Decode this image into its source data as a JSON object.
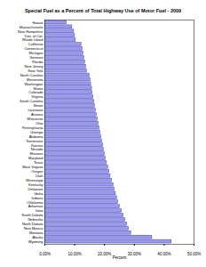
{
  "chart_data": {
    "type": "bar",
    "orientation": "horizontal",
    "title": "Special Fuel as a Percent of Total Highway Use of Motor Fuel - 2009",
    "x_label": "Percent",
    "categories": [
      "Hawaii",
      "Massachusetts",
      "New Hampshire",
      "Dist. of Col.",
      "Rhode Island",
      "California",
      "Connecticut",
      "Michigan",
      "Vermont",
      "Florida",
      "New Jersey",
      "New York",
      "North Carolina",
      "Minnesota",
      "Washington",
      "Maine",
      "Colorado",
      "Virginia",
      "South Carolina",
      "Illinois",
      "Louisiana",
      "Arizona",
      "Wisconsin",
      "Ohio",
      "Pennsylvania",
      "Georgia",
      "Alabama",
      "Tennessee",
      "Kansas",
      "Nevada",
      "Missouri",
      "Maryland",
      "Texas",
      "West Virginia",
      "Oregon",
      "Utah",
      "Mississippi",
      "Kentucky",
      "Delaware",
      "Idaho",
      "Indiana",
      "Oklahoma",
      "Arkansas",
      "Iowa",
      "South Dakota",
      "Nebraska",
      "North Dakota",
      "New Mexico",
      "Montana",
      "Alaska",
      "Wyoming"
    ],
    "values": [
      7.3,
      9.2,
      9.8,
      10.1,
      10.4,
      12.3,
      12.7,
      12.9,
      13.2,
      13.5,
      13.8,
      14.1,
      15.0,
      15.3,
      15.5,
      15.8,
      16.0,
      16.3,
      16.6,
      16.8,
      17.1,
      17.4,
      17.7,
      18.0,
      18.3,
      18.6,
      18.9,
      19.2,
      19.5,
      19.8,
      20.1,
      20.4,
      20.8,
      21.2,
      21.6,
      22.0,
      22.5,
      23.0,
      23.4,
      23.8,
      24.2,
      24.6,
      25.2,
      25.8,
      26.4,
      27.0,
      27.6,
      28.2,
      29.0,
      36.0,
      42.5
    ],
    "color": "#9999ee",
    "xlim": [
      0,
      50
    ],
    "xticks": [
      {
        "value": 0,
        "label": "0.00%"
      },
      {
        "value": 10,
        "label": "10.00%"
      },
      {
        "value": 20,
        "label": "20.00%"
      },
      {
        "value": 30,
        "label": "30.00%"
      },
      {
        "value": 40,
        "label": "40.00%"
      },
      {
        "value": 50,
        "label": "50.00%"
      }
    ],
    "grid": false
  }
}
